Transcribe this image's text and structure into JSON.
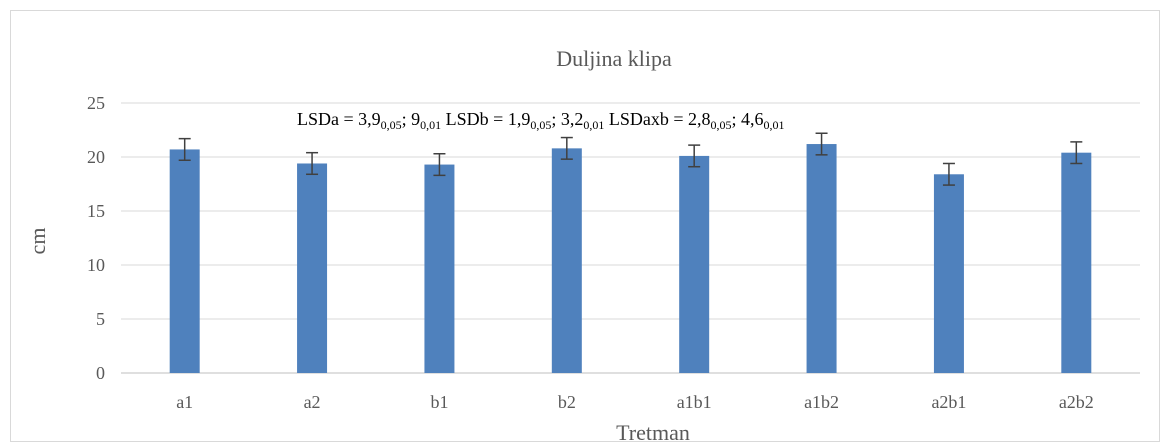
{
  "chart_data": {
    "type": "bar",
    "title": "Duljina klipa",
    "xlabel": "Tretman",
    "ylabel": "cm",
    "categories": [
      "a1",
      "a2",
      "b1",
      "b2",
      "a1b1",
      "a1b2",
      "a2b1",
      "a2b2"
    ],
    "values": [
      20.7,
      19.4,
      19.3,
      20.8,
      20.1,
      21.2,
      18.4,
      20.4
    ],
    "error": 1.0,
    "ylim": [
      0,
      25
    ],
    "yticks": [
      0,
      5,
      10,
      15,
      20,
      25
    ],
    "grid": true,
    "legend": "none",
    "annotation": {
      "parts": [
        {
          "t": "LSDa = 3,9",
          "sub": false
        },
        {
          "t": "0,05",
          "sub": true
        },
        {
          "t": "; 9",
          "sub": false
        },
        {
          "t": "0,01",
          "sub": true
        },
        {
          "t": " LSDb = 1,9",
          "sub": false
        },
        {
          "t": "0,05",
          "sub": true
        },
        {
          "t": "; 3,2",
          "sub": false
        },
        {
          "t": "0,01",
          "sub": true
        },
        {
          "t": " LSDaxb = 2,8",
          "sub": false
        },
        {
          "t": "0,05",
          "sub": true
        },
        {
          "t": "; 4,6",
          "sub": false
        },
        {
          "t": "0,01",
          "sub": true
        }
      ]
    },
    "colors": {
      "bar": "#4f81bd",
      "error": "#404040",
      "grid": "#d9d9d9",
      "axis": "#bfbfbf"
    }
  }
}
